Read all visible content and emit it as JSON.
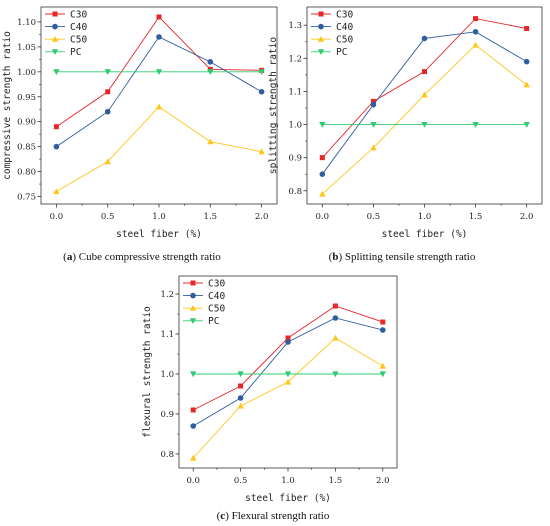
{
  "colors": {
    "C30": "#e8262a",
    "C40": "#2f5d9e",
    "C50": "#ffc61a",
    "PC": "#2ecc71"
  },
  "chart_data": [
    {
      "type": "line",
      "id": "a",
      "caption_letter": "(a)",
      "caption_text": "Cube compressive strength ratio",
      "xlabel": "steel fiber (%)",
      "ylabel": "compressive strength ratio",
      "x": [
        0.0,
        0.5,
        1.0,
        1.5,
        2.0
      ],
      "xticks": [
        "0.0",
        "0.5",
        "1.0",
        "1.5",
        "2.0"
      ],
      "yticks": [
        "0.75",
        "0.80",
        "0.85",
        "0.90",
        "0.95",
        "1.00",
        "1.05",
        "1.10"
      ],
      "ytick_values": [
        0.75,
        0.8,
        0.85,
        0.9,
        0.95,
        1.0,
        1.05,
        1.1
      ],
      "xlim": [
        -0.15,
        2.15
      ],
      "ylim": [
        0.735,
        1.13
      ],
      "legend": "top-left",
      "series": [
        {
          "name": "C30",
          "values": [
            0.89,
            0.96,
            1.11,
            1.005,
            1.003
          ],
          "marker": "square"
        },
        {
          "name": "C40",
          "values": [
            0.85,
            0.92,
            1.07,
            1.02,
            0.96
          ],
          "marker": "circle"
        },
        {
          "name": "C50",
          "values": [
            0.76,
            0.82,
            0.93,
            0.86,
            0.84
          ],
          "marker": "triangle-up"
        },
        {
          "name": "PC",
          "values": [
            1.0,
            1.0,
            1.0,
            1.0,
            1.0
          ],
          "marker": "triangle-down"
        }
      ]
    },
    {
      "type": "line",
      "id": "b",
      "caption_letter": "(b)",
      "caption_text": "Splitting tensile strength ratio",
      "xlabel": "steel fiber (%)",
      "ylabel": "splitting strength ratio",
      "x": [
        0.0,
        0.5,
        1.0,
        1.5,
        2.0
      ],
      "xticks": [
        "0.0",
        "0.5",
        "1.0",
        "1.5",
        "2.0"
      ],
      "yticks": [
        "0.8",
        "0.9",
        "1.0",
        "1.1",
        "1.2",
        "1.3"
      ],
      "ytick_values": [
        0.8,
        0.9,
        1.0,
        1.1,
        1.2,
        1.3
      ],
      "xlim": [
        -0.15,
        2.15
      ],
      "ylim": [
        0.76,
        1.355
      ],
      "legend": "top-left",
      "series": [
        {
          "name": "C30",
          "values": [
            0.9,
            1.07,
            1.16,
            1.32,
            1.29
          ],
          "marker": "square"
        },
        {
          "name": "C40",
          "values": [
            0.85,
            1.06,
            1.26,
            1.28,
            1.19
          ],
          "marker": "circle"
        },
        {
          "name": "C50",
          "values": [
            0.79,
            0.93,
            1.09,
            1.24,
            1.12
          ],
          "marker": "triangle-up"
        },
        {
          "name": "PC",
          "values": [
            1.0,
            1.0,
            1.0,
            1.0,
            1.0
          ],
          "marker": "triangle-down"
        }
      ]
    },
    {
      "type": "line",
      "id": "c",
      "caption_letter": "(c)",
      "caption_text": "Flexural strength ratio",
      "xlabel": "steel fiber (%)",
      "ylabel": "flexural strength ratio",
      "x": [
        0.0,
        0.5,
        1.0,
        1.5,
        2.0
      ],
      "xticks": [
        "0.0",
        "0.5",
        "1.0",
        "1.5",
        "2.0"
      ],
      "yticks": [
        "0.8",
        "0.9",
        "1.0",
        "1.1",
        "1.2"
      ],
      "ytick_values": [
        0.8,
        0.9,
        1.0,
        1.1,
        1.2
      ],
      "xlim": [
        -0.15,
        2.15
      ],
      "ylim": [
        0.765,
        1.245
      ],
      "legend": "top-left",
      "series": [
        {
          "name": "C30",
          "values": [
            0.91,
            0.97,
            1.09,
            1.17,
            1.13
          ],
          "marker": "square"
        },
        {
          "name": "C40",
          "values": [
            0.87,
            0.94,
            1.08,
            1.14,
            1.11
          ],
          "marker": "circle"
        },
        {
          "name": "C50",
          "values": [
            0.79,
            0.92,
            0.98,
            1.09,
            1.02
          ],
          "marker": "triangle-up"
        },
        {
          "name": "PC",
          "values": [
            1.0,
            1.0,
            1.0,
            1.0,
            1.0
          ],
          "marker": "triangle-down"
        }
      ]
    }
  ]
}
